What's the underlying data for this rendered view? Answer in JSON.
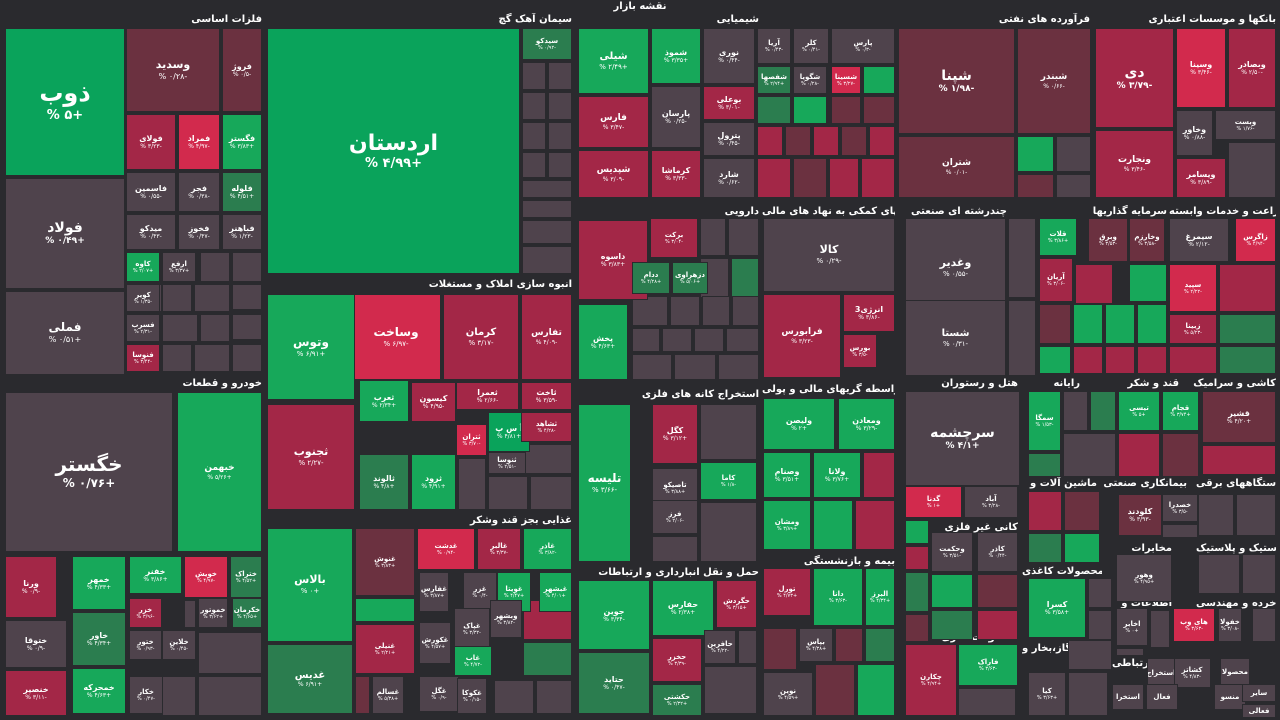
{
  "map_title": "نقشه بازار",
  "colors": {
    "green_strong": "#0aa35b",
    "green": "#17a85a",
    "green_dark": "#2b7d4f",
    "red_strong": "#d22a4d",
    "red": "#a32747",
    "red_dark": "#6b3140",
    "neutral": "#4f434c"
  },
  "sectors": [
    {
      "name": "فلزات اساسی"
    },
    {
      "name": "سیمان آهک گچ"
    },
    {
      "name": "شیمیایی"
    },
    {
      "name": "فرآورده های نفتی"
    },
    {
      "name": "بانکها و موسسات اعتباری"
    },
    {
      "name": "انبوه سازی املاک و مستغلات"
    },
    {
      "name": "خودرو و قطعات"
    },
    {
      "name": "دارویی"
    },
    {
      "name": "فعالیتهای کمکی به نهاد های مالی"
    },
    {
      "name": "چندرشته ای صنعتی"
    },
    {
      "name": "سرمایه گذاریها"
    },
    {
      "name": "زراعت و خدمات وابسته"
    },
    {
      "name": "استخراج کانه های فلزی"
    },
    {
      "name": "واسطه گریهای مالی و پولی"
    },
    {
      "name": "هتل و رستوران"
    },
    {
      "name": "رایانه"
    },
    {
      "name": "قند و شکر"
    },
    {
      "name": "کاشی و سرامیک"
    },
    {
      "name": "غذایی بجز قند وشکر"
    },
    {
      "name": "ماشین آلات و"
    },
    {
      "name": "بیمانکاری صنعتی"
    },
    {
      "name": "دستگاههای برقی"
    },
    {
      "name": "کانی غیر فلزی"
    },
    {
      "name": "حمل و نقل انبارداری و ارتباطات"
    },
    {
      "name": "بیمه و بازنشستگی"
    },
    {
      "name": "محصولات کاغذی"
    },
    {
      "name": "مخابرات"
    },
    {
      "name": "لاستیک و پلاستیک"
    },
    {
      "name": "اطلاعات و"
    },
    {
      "name": "فنی و مهندسی"
    },
    {
      "name": "خرده"
    },
    {
      "name": "محصولات فلزی"
    },
    {
      "name": "عرضه برق،گاز،بخار و"
    },
    {
      "name": "وسایل ارتباطی"
    }
  ],
  "tiles": [
    {
      "name": "ذوب",
      "pct": "+۵ %"
    },
    {
      "name": "فولاد",
      "pct": "+۰/۴۹ %"
    },
    {
      "name": "فملی",
      "pct": "+۰/۵۱ %"
    },
    {
      "name": "وسدید",
      "pct": "-۰/۲۸ %"
    },
    {
      "name": "فروژ",
      "pct": "-۰/۵ %"
    },
    {
      "name": "فولای",
      "pct": "-۳/۲۳ %"
    },
    {
      "name": "فمراد",
      "pct": "-۴/۹۷ %"
    },
    {
      "name": "فگستر",
      "pct": "+۳/۸۳ %"
    },
    {
      "name": "فاسمین",
      "pct": "-۰/۵۵ %"
    },
    {
      "name": "فجر",
      "pct": "-۰/۳۸ %"
    },
    {
      "name": "فلوله",
      "pct": "+۴/۵۱ %"
    },
    {
      "name": "میدکو",
      "pct": "-۰/۴۳ %"
    },
    {
      "name": "فخوز",
      "pct": "-۰/۴۷ %"
    },
    {
      "name": "فباهنر",
      "pct": "-۱/۲۳ %"
    },
    {
      "name": "کاوه",
      "pct": "+۲/۰۷ %"
    },
    {
      "name": "ارفع",
      "pct": "+۳/۳۷ %"
    },
    {
      "name": "کویر",
      "pct": "-۱/۳۵ %"
    },
    {
      "name": "فسرب",
      "pct": "-۲/۳۱ %"
    },
    {
      "name": "فنوسا",
      "pct": "-۳/۴۴ %"
    },
    {
      "name": "اردستان",
      "pct": "+۴/۹۹ %"
    },
    {
      "name": "سیدکو",
      "pct": "-۰/۹۲ %"
    },
    {
      "name": "شیلی",
      "pct": "+۲/۴۹ %"
    },
    {
      "name": "شموذ",
      "pct": "+۳/۳۵ %"
    },
    {
      "name": "نوری",
      "pct": "-۰/۴۴ %"
    },
    {
      "name": "آریا",
      "pct": "-۰/۴۳ %"
    },
    {
      "name": "کلر",
      "pct": "-۰/۴۱ %"
    },
    {
      "name": "پارس",
      "pct": "-۰/۳ %"
    },
    {
      "name": "شفصها",
      "pct": "+۲/۹۴ %"
    },
    {
      "name": "شگویا",
      "pct": "-۰/۲۸ %"
    },
    {
      "name": "شسینا",
      "pct": "-۳/۲۷ %"
    },
    {
      "name": "بوعلی",
      "pct": "-۳/۰۱ %"
    },
    {
      "name": "پارسان",
      "pct": "-۰/۲۵ %"
    },
    {
      "name": "فارس",
      "pct": "-۳/۴۷ %"
    },
    {
      "name": "پترول",
      "pct": "-۰/۴۵ %"
    },
    {
      "name": "شپدیس",
      "pct": "-۳/۰۹ %"
    },
    {
      "name": "کرماشا",
      "pct": "-۳/۳۳ %"
    },
    {
      "name": "شارد",
      "pct": "-۰/۶۲ %"
    },
    {
      "name": "شپنا",
      "pct": "-۱/۹۸ %"
    },
    {
      "name": "شبندر",
      "pct": "-۰/۶۶ %"
    },
    {
      "name": "شتران",
      "pct": "-۰/۰۱ %"
    },
    {
      "name": "دی",
      "pct": "-۳/۷۹ %"
    },
    {
      "name": "وسینا",
      "pct": "-۳/۴۶ %"
    },
    {
      "name": "وبصادر",
      "pct": "-۲/۵۰ %"
    },
    {
      "name": "وبست",
      "pct": "-۱/۷۶ %"
    },
    {
      "name": "وخاور",
      "pct": "-۰/۸۸ %"
    },
    {
      "name": "ونجارت",
      "pct": "-۳/۴۶ %"
    },
    {
      "name": "ویسامر",
      "pct": "-۳/۸۹ %"
    },
    {
      "name": "وساخت",
      "pct": "-۶/۹۷ %"
    },
    {
      "name": "کرمان",
      "pct": "-۳/۱۷ %"
    },
    {
      "name": "تفارس",
      "pct": "-۴/۰۹ %"
    },
    {
      "name": "وتوس",
      "pct": "+۶/۹۱ %"
    },
    {
      "name": "ثجنوب",
      "pct": "-۲/۲۷ %"
    },
    {
      "name": "ثعرب",
      "pct": "+۲/۳۴ %"
    },
    {
      "name": "کیسون",
      "pct": "-۴/۹۵ %"
    },
    {
      "name": "ثعمرا",
      "pct": "-۲/۶۶ %"
    },
    {
      "name": "ثاخت",
      "pct": "-۳/۵۹ %"
    },
    {
      "name": "آ س پ",
      "pct": "+۴/۸۱ %"
    },
    {
      "name": "ثشاهد",
      "pct": "-۴/۲۸ %"
    },
    {
      "name": "ثتران",
      "pct": "-۳/۷۰ %"
    },
    {
      "name": "ثنوسا",
      "pct": "-۲/۵۱ %"
    },
    {
      "name": "ثالوند",
      "pct": "+۴/۸ %"
    },
    {
      "name": "ثرود",
      "pct": "+۴/۹۱ %"
    },
    {
      "name": "خگستر",
      "pct": "+۰/۷۶ %"
    },
    {
      "name": "خبهمن",
      "pct": "+۵/۲۶ %"
    },
    {
      "name": "ورنا",
      "pct": "-۰/۹ %"
    },
    {
      "name": "خمهر",
      "pct": "+۴/۳۳ %"
    },
    {
      "name": "خفنر",
      "pct": "+۳/۸۶ %"
    },
    {
      "name": "خویش",
      "pct": "-۴/۹۷ %"
    },
    {
      "name": "ختراک",
      "pct": "+۴/۵۲ %"
    },
    {
      "name": "خزر",
      "pct": "-۳/۹۶ %"
    },
    {
      "name": "خموتور",
      "pct": "+۳/۶۲ %"
    },
    {
      "name": "خکرمان",
      "pct": "+۴/۶۵ %"
    },
    {
      "name": "ختوقا",
      "pct": "-۰/۹ %"
    },
    {
      "name": "خاور",
      "pct": "+۴/۳۴ %"
    },
    {
      "name": "ختور",
      "pct": "-۰/۹۳ %"
    },
    {
      "name": "خلاین",
      "pct": "-۰/۴۵ %"
    },
    {
      "name": "خنصیر",
      "pct": "-۳/۱۱ %"
    },
    {
      "name": "خمحرکه",
      "pct": "+۴/۶۳ %"
    },
    {
      "name": "خکار",
      "pct": "-۰/۴۷ %"
    },
    {
      "name": "برکت",
      "pct": "-۳/۰۴ %"
    },
    {
      "name": "داسوه",
      "pct": "+۳/۸۳ %"
    },
    {
      "name": "ددام",
      "pct": "+۴/۲۸ %"
    },
    {
      "name": "دزهراوی",
      "pct": "+۵/۰۶ %"
    },
    {
      "name": "پخش",
      "pct": "+۴/۶۳ %"
    },
    {
      "name": "کالا",
      "pct": "-۰/۲۹ %"
    },
    {
      "name": "فرابورس",
      "pct": "-۳/۲۳ %"
    },
    {
      "name": "انرژی3",
      "pct": "-۳/۸۶ %"
    },
    {
      "name": "بورس",
      "pct": "-۳/۵ %"
    },
    {
      "name": "وغدیر",
      "pct": "-۰/۵۵ %"
    },
    {
      "name": "شستا",
      "pct": "-۰/۳۱ %"
    },
    {
      "name": "قلات",
      "pct": "+۳/۸۶ %"
    },
    {
      "name": "وبرق",
      "pct": "-۳/۵۳ %"
    },
    {
      "name": "وخارزم",
      "pct": "-۳/۵۸ %"
    },
    {
      "name": "آریان",
      "pct": "-۳/۰۶ %"
    },
    {
      "name": "سیمرغ",
      "pct": "-۲/۱۲ %"
    },
    {
      "name": "زاگرس",
      "pct": "-۴/۹۴ %"
    },
    {
      "name": "سپید",
      "pct": "-۲/۲۲ %"
    },
    {
      "name": "زبینا",
      "pct": "-۵/۲۳ %"
    },
    {
      "name": "تلیسه",
      "pct": "-۳/۶۶ %"
    },
    {
      "name": "کگل",
      "pct": "+۳/۱۲ %"
    },
    {
      "name": "کاما",
      "pct": "-۱/۸ %"
    },
    {
      "name": "تاصیکو",
      "pct": "+۳/۸۸ %"
    },
    {
      "name": "فرز",
      "pct": "-۲/۰۶ %"
    },
    {
      "name": "ومعادن",
      "pct": "-۳/۲۹ %"
    },
    {
      "name": "ولیصن",
      "pct": "+۲ %"
    },
    {
      "name": "وصنام",
      "pct": "+۳/۵۱ %"
    },
    {
      "name": "ولانا",
      "pct": "+۳/۷۶ %"
    },
    {
      "name": "ومشان",
      "pct": "+۳/۸۹ %"
    },
    {
      "name": "سرچشمه",
      "pct": "+۴/۱ %"
    },
    {
      "name": "گدنا",
      "pct": "+۱ %"
    },
    {
      "name": "آباد",
      "pct": "-۳/۲۸ %"
    },
    {
      "name": "سمگا",
      "pct": "-۱/۵۳ %"
    },
    {
      "name": "تیسی",
      "pct": "+۵ %"
    },
    {
      "name": "قجام",
      "pct": "+۳/۷۴ %"
    },
    {
      "name": "قشیر",
      "pct": "+۴/۲۰ %"
    },
    {
      "name": "کلودند",
      "pct": "-۳/۹۳ %"
    },
    {
      "name": "خصدرا",
      "pct": "-۳/۵ %"
    },
    {
      "name": "بالاس",
      "pct": "+۰ %"
    },
    {
      "name": "غدیس",
      "pct": "+۶/۹۱ %"
    },
    {
      "name": "غنوش",
      "pct": "+۳/۸۳ %"
    },
    {
      "name": "غدشت",
      "pct": "-۰/۹۴ %"
    },
    {
      "name": "غالبر",
      "pct": "-۳/۳۷ %"
    },
    {
      "name": "غاذر",
      "pct": "-۳/۸۲ %"
    },
    {
      "name": "غفارس",
      "pct": "+۳/۸۷ %"
    },
    {
      "name": "غزر",
      "pct": "-۰/۴ %"
    },
    {
      "name": "غویتا",
      "pct": "+۴/۴۷ %"
    },
    {
      "name": "غبشهر",
      "pct": "+۴/۰۱ %"
    },
    {
      "name": "غنیلی",
      "pct": "+۲/۲۱ %"
    },
    {
      "name": "غپاک",
      "pct": "-۳/۳۲ %"
    },
    {
      "name": "وبشهر",
      "pct": "-۳/۸۲ %"
    },
    {
      "name": "غکورش",
      "pct": "+۴/۵۷ %"
    },
    {
      "name": "غاب",
      "pct": "-۴/۷۲ %"
    },
    {
      "name": "غسالم",
      "pct": "+۵/۳۸ %"
    },
    {
      "name": "غگل",
      "pct": "-۰/۹ %"
    },
    {
      "name": "غکوکا",
      "pct": "-۰/۱۵ %"
    },
    {
      "name": "جوین",
      "pct": "-۳/۳۴ %"
    },
    {
      "name": "حفارس",
      "pct": "+۲/۳۸ %"
    },
    {
      "name": "حگردش",
      "pct": "+۳/۱۵ %"
    },
    {
      "name": "حخزر",
      "pct": "-۳/۳۹ %"
    },
    {
      "name": "حافرین",
      "pct": "-۴/۲۲ %"
    },
    {
      "name": "حتاید",
      "pct": "-۰/۴۷ %"
    },
    {
      "name": "حکشتی",
      "pct": "+۲/۳۲ %"
    },
    {
      "name": "تورل",
      "pct": "+۴/۷۳ %"
    },
    {
      "name": "دانا",
      "pct": "-۳/۶۳ %"
    },
    {
      "name": "البرز",
      "pct": "+۴/۳۴ %"
    },
    {
      "name": "بپاس",
      "pct": "+۴/۳۸ %"
    },
    {
      "name": "نوین",
      "pct": "+۴/۵۹ %"
    },
    {
      "name": "وحکمت",
      "pct": "-۳/۵۱ %"
    },
    {
      "name": "کاذر",
      "pct": "-۰/۴۴ %"
    },
    {
      "name": "کسرا",
      "pct": "+۳/۵۸ %"
    },
    {
      "name": "چکارن",
      "pct": "+۴/۹۴ %"
    },
    {
      "name": "فاراک",
      "pct": "-۳/۶۳ %"
    },
    {
      "name": "کیا",
      "pct": "+۳/۶۳ %"
    },
    {
      "name": "وهور",
      "pct": "+۴/۹۵ %"
    },
    {
      "name": "اخابر",
      "pct": "+۰ %"
    },
    {
      "name": "های وب",
      "pct": "-۳/۶۳ %"
    },
    {
      "name": "خفولا",
      "pct": "-۳/۰۸ %"
    },
    {
      "name": "کشاتز",
      "pct": "-۴/۸۳ %"
    },
    {
      "name": "استخراج",
      "pct": ""
    },
    {
      "name": "محصولا",
      "pct": ""
    },
    {
      "name": "استخرا",
      "pct": ""
    },
    {
      "name": "فعال",
      "pct": ""
    },
    {
      "name": "منسو",
      "pct": ""
    },
    {
      "name": "سایر",
      "pct": ""
    },
    {
      "name": "فعالی",
      "pct": ""
    },
    {
      "name": "چاپ",
      "pct": ""
    }
  ]
}
